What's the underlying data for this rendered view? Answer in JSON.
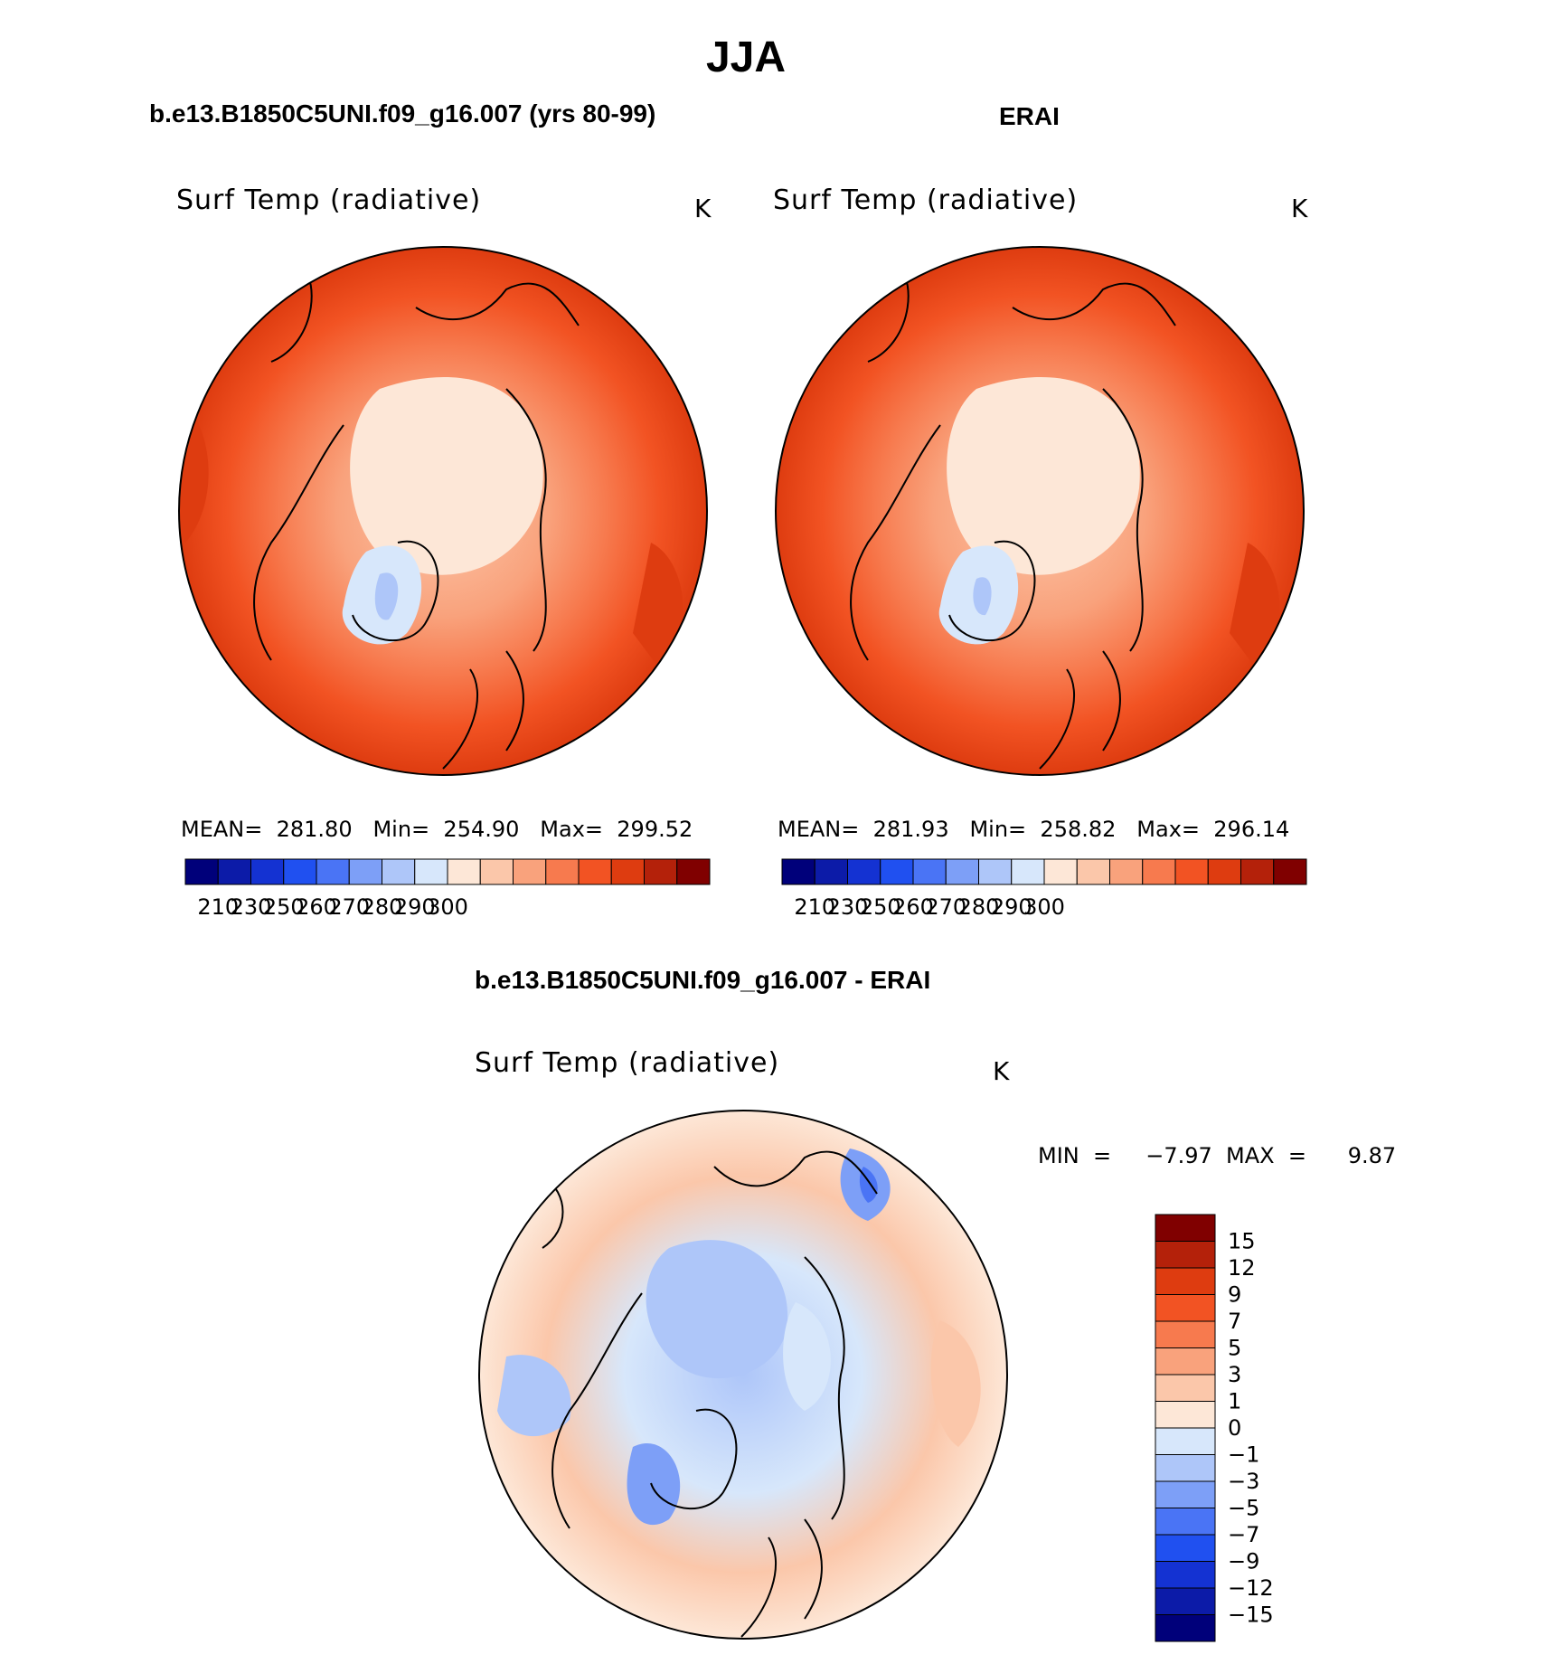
{
  "figure": {
    "title": "JJA",
    "panel_left_title": "b.e13.B1850C5UNI.f09_g16.007 (yrs 80-99)",
    "panel_right_title": "ERAI",
    "panel_diff_title": "b.e13.B1850C5UNI.f09_g16.007 - ERAI"
  },
  "panels": {
    "model": {
      "variable": "Surf Temp (radiative)",
      "units": "K",
      "stats_text": "MEAN=  281.80   Min=  254.90   Max=  299.52"
    },
    "obs": {
      "variable": "Surf Temp (radiative)",
      "units": "K",
      "stats_text": "MEAN=  281.93   Min=  258.82   Max=  296.14"
    },
    "diff": {
      "variable": "Surf Temp (radiative)",
      "units": "K",
      "minmax_text": "MIN  =     −7.97  MAX  =      9.87"
    }
  },
  "colorbars": {
    "abs_colors": [
      "#00007a",
      "#0c1ba8",
      "#1432d2",
      "#2050f0",
      "#4a74f5",
      "#7d9ff7",
      "#aec6f9",
      "#d7e7fb",
      "#fde7d7",
      "#fbc7aa",
      "#f9a27c",
      "#f77a4e",
      "#f25323",
      "#de3c10",
      "#b4210a",
      "#800000"
    ],
    "abs_labels": [
      "210",
      "230",
      "250",
      "260",
      "270",
      "280",
      "290",
      "300"
    ],
    "diff_colors": [
      "#800000",
      "#b4210a",
      "#de3c10",
      "#f25323",
      "#f77a4e",
      "#f9a27c",
      "#fbc7aa",
      "#fde7d7",
      "#d7e7fb",
      "#aec6f9",
      "#7d9ff7",
      "#4a74f5",
      "#2050f0",
      "#1432d2",
      "#0c1ba8",
      "#00007a"
    ],
    "diff_labels": [
      "15",
      "12",
      "9",
      "7",
      "5",
      "3",
      "1",
      "0",
      "−1",
      "−3",
      "−5",
      "−7",
      "−9",
      "−12",
      "−15"
    ]
  }
}
